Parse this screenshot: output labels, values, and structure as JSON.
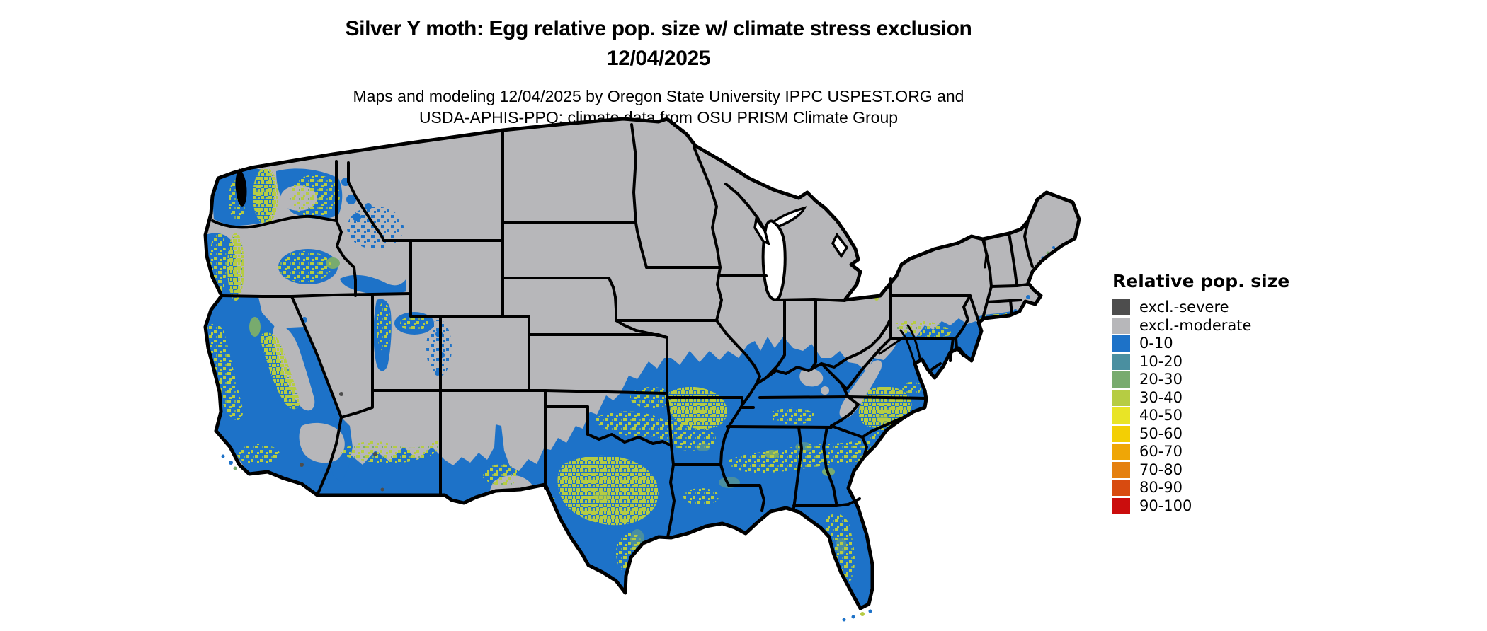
{
  "header": {
    "title_line1": "Silver Y moth: Egg relative pop. size w/ climate stress exclusion",
    "title_line2": "12/04/2025",
    "subtitle_line1": "Maps and modeling 12/04/2025 by Oregon State University IPPC USPEST.ORG and",
    "subtitle_line2": "USDA-APHIS-PPQ; climate data from OSU PRISM Climate Group"
  },
  "legend": {
    "title": "Relative pop. size",
    "items": [
      {
        "label": "excl.-severe",
        "color": "#4d4d4d"
      },
      {
        "label": "excl.-moderate",
        "color": "#b7b7ba"
      },
      {
        "label": "0-10",
        "color": "#1d72c8"
      },
      {
        "label": "10-20",
        "color": "#4a8fa0"
      },
      {
        "label": "20-30",
        "color": "#78ab6e"
      },
      {
        "label": "30-40",
        "color": "#b6cc43"
      },
      {
        "label": "40-50",
        "color": "#e9e426"
      },
      {
        "label": "50-60",
        "color": "#f3cf04"
      },
      {
        "label": "60-70",
        "color": "#efa606"
      },
      {
        "label": "70-80",
        "color": "#e5800f"
      },
      {
        "label": "80-90",
        "color": "#d84b10"
      },
      {
        "label": "90-100",
        "color": "#cb0d0d"
      }
    ]
  },
  "map": {
    "background_color": "#ffffff",
    "state_border_color": "#000000",
    "excluded_moderate_color": "#b7b7ba",
    "dominant_population_bin": "0-10",
    "secondary_population_bin": "30-40"
  }
}
